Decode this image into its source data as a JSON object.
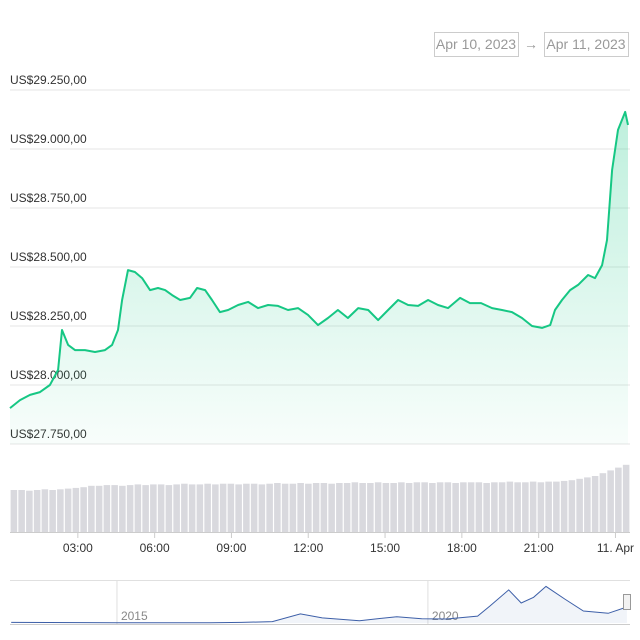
{
  "date_range": {
    "from": "Apr 10, 2023",
    "arrow": "→",
    "to": "Apr 11, 2023"
  },
  "chart_data": [
    {
      "type": "line",
      "color": "#16c784",
      "x": [
        0.35,
        0.74,
        1.13,
        1.52,
        1.91,
        2.23,
        2.38,
        2.62,
        2.89,
        3.28,
        3.67,
        4.06,
        4.34,
        4.57,
        4.73,
        4.96,
        5.23,
        5.51,
        5.82,
        6.13,
        6.41,
        6.68,
        7.0,
        7.38,
        7.66,
        7.97,
        8.24,
        8.55,
        8.87,
        9.26,
        9.65,
        10.04,
        10.43,
        10.82,
        11.21,
        11.6,
        11.99,
        12.38,
        12.77,
        13.16,
        13.55,
        13.95,
        14.34,
        14.73,
        15.12,
        15.51,
        15.9,
        16.29,
        16.68,
        17.07,
        17.46,
        17.93,
        18.32,
        18.75,
        19.18,
        19.57,
        19.96,
        20.35,
        20.74,
        21.13,
        21.45,
        21.64,
        21.91,
        22.23,
        22.54,
        22.93,
        23.2,
        23.48,
        23.67,
        23.87,
        24.1,
        24.38,
        24.49
      ],
      "values": [
        27902,
        27936,
        27958,
        27970,
        28000,
        28064,
        28233,
        28170,
        28148,
        28148,
        28140,
        28148,
        28170,
        28233,
        28360,
        28487,
        28479,
        28453,
        28402,
        28411,
        28402,
        28381,
        28360,
        28369,
        28411,
        28402,
        28360,
        28309,
        28318,
        28339,
        28352,
        28326,
        28339,
        28335,
        28318,
        28326,
        28297,
        28254,
        28284,
        28318,
        28284,
        28326,
        28318,
        28275,
        28318,
        28360,
        28339,
        28335,
        28360,
        28339,
        28326,
        28369,
        28347,
        28347,
        28326,
        28318,
        28309,
        28284,
        28250,
        28242,
        28254,
        28318,
        28360,
        28402,
        28424,
        28466,
        28453,
        28508,
        28614,
        28911,
        29081,
        29157,
        29102
      ],
      "xlim": [
        0.35,
        24.49
      ],
      "xticks": [
        {
          "value": 3,
          "label": "03:00"
        },
        {
          "value": 6,
          "label": "06:00"
        },
        {
          "value": 9,
          "label": "09:00"
        },
        {
          "value": 12,
          "label": "12:00"
        },
        {
          "value": 15,
          "label": "15:00"
        },
        {
          "value": 18,
          "label": "18:00"
        },
        {
          "value": 21,
          "label": "21:00"
        },
        {
          "value": 24,
          "label": "11. Apr"
        }
      ],
      "ylim": [
        27750,
        29250
      ],
      "yticks": [
        {
          "value": 27750,
          "label": "US$27.750,00"
        },
        {
          "value": 28000,
          "label": "US$28.000,00"
        },
        {
          "value": 28250,
          "label": "US$28.250,00"
        },
        {
          "value": 28500,
          "label": "US$28.500,00"
        },
        {
          "value": 28750,
          "label": "US$28.750,00"
        },
        {
          "value": 29000,
          "label": "US$29.000,00"
        },
        {
          "value": 29250,
          "label": "US$29.250,00"
        }
      ],
      "grid": true
    },
    {
      "type": "bar",
      "color": "#d9d9de",
      "ylim": [
        0,
        100
      ],
      "values": [
        60,
        60,
        59,
        60,
        61,
        60,
        61,
        62,
        63,
        64,
        66,
        66,
        67,
        67,
        66,
        67,
        68,
        67,
        68,
        68,
        67,
        68,
        69,
        68,
        68,
        69,
        68,
        69,
        69,
        68,
        69,
        69,
        68,
        69,
        70,
        69,
        69,
        70,
        69,
        70,
        70,
        69,
        70,
        70,
        71,
        70,
        70,
        71,
        70,
        70,
        71,
        70,
        71,
        71,
        70,
        71,
        71,
        70,
        71,
        71,
        71,
        70,
        71,
        71,
        72,
        71,
        71,
        72,
        71,
        72,
        72,
        73,
        74,
        76,
        78,
        80,
        84,
        88,
        92,
        96
      ]
    },
    {
      "type": "line",
      "color": "#3d5fa8",
      "x": [
        2013.3,
        2013.9,
        2014.5,
        2015.0,
        2015.8,
        2016.5,
        2017.0,
        2017.5,
        2017.95,
        2018.3,
        2018.9,
        2019.5,
        2019.9,
        2020.3,
        2020.8,
        2021.0,
        2021.3,
        2021.5,
        2021.7,
        2021.9,
        2022.2,
        2022.5,
        2022.9,
        2023.2
      ],
      "values": [
        1000,
        900,
        700,
        300,
        400,
        600,
        1000,
        2500,
        16000,
        9000,
        4000,
        11000,
        7500,
        7000,
        12000,
        30000,
        58000,
        35000,
        45000,
        64000,
        42000,
        21000,
        17000,
        28000
      ],
      "xlim": [
        2013.28,
        2023.25
      ],
      "xticks": [
        {
          "value": 2015,
          "label": "2015"
        },
        {
          "value": 2020,
          "label": "2020"
        }
      ],
      "ylim": [
        0,
        70000
      ]
    }
  ]
}
